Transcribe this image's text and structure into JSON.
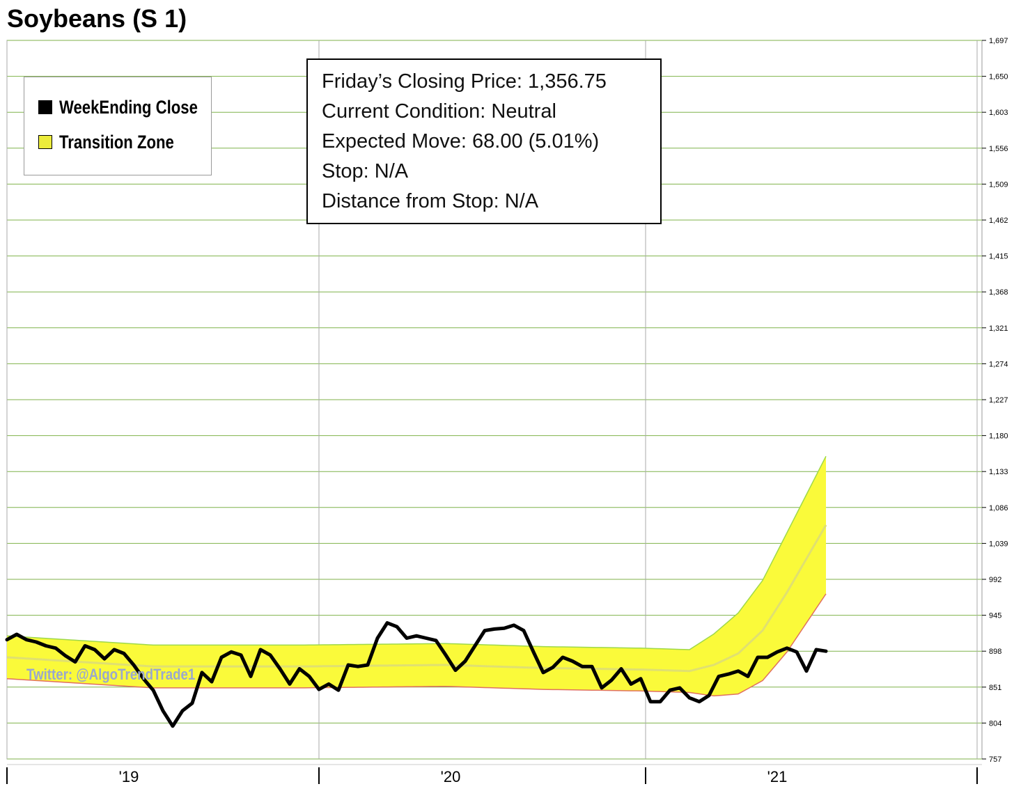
{
  "chart_data": {
    "type": "line",
    "title": "Soybeans (S 1)",
    "yticks": [
      757,
      804,
      851,
      898,
      945,
      992,
      1039,
      1086,
      1133,
      1180,
      1227,
      1274,
      1321,
      1368,
      1415,
      1462,
      1509,
      1556,
      1603,
      1650,
      1697
    ],
    "ytick_labels": [
      "757",
      "804",
      "851",
      "898",
      "945",
      "992",
      "1,039",
      "1,086",
      "1,133",
      "1,180",
      "1,227",
      "1,274",
      "1,321",
      "1,368",
      "1,415",
      "1,462",
      "1,509",
      "1,556",
      "1,603",
      "1,650",
      "1,697"
    ],
    "ylim": [
      757,
      1697
    ],
    "xlim": [
      0,
      200
    ],
    "year_markers": [
      {
        "label": "'19",
        "week": 25
      },
      {
        "label": "'20",
        "week": 91
      },
      {
        "label": "'21",
        "week": 158
      }
    ],
    "year_separators": [
      0,
      64,
      131,
      199
    ],
    "legend": [
      {
        "label": "WeekEnding Close",
        "color": "#000000"
      },
      {
        "label": "Transition Zone",
        "color": "#ecec3c"
      }
    ],
    "weekending_close": [
      {
        "x": 0,
        "y": 913
      },
      {
        "x": 2,
        "y": 920
      },
      {
        "x": 4,
        "y": 913
      },
      {
        "x": 6,
        "y": 910
      },
      {
        "x": 8,
        "y": 905
      },
      {
        "x": 10,
        "y": 902
      },
      {
        "x": 12,
        "y": 892
      },
      {
        "x": 14,
        "y": 884
      },
      {
        "x": 16,
        "y": 905
      },
      {
        "x": 18,
        "y": 900
      },
      {
        "x": 20,
        "y": 888
      },
      {
        "x": 22,
        "y": 900
      },
      {
        "x": 24,
        "y": 895
      },
      {
        "x": 26,
        "y": 880
      },
      {
        "x": 28,
        "y": 862
      },
      {
        "x": 30,
        "y": 847
      },
      {
        "x": 32,
        "y": 820
      },
      {
        "x": 34,
        "y": 800
      },
      {
        "x": 36,
        "y": 820
      },
      {
        "x": 38,
        "y": 830
      },
      {
        "x": 40,
        "y": 870
      },
      {
        "x": 42,
        "y": 858
      },
      {
        "x": 44,
        "y": 890
      },
      {
        "x": 46,
        "y": 897
      },
      {
        "x": 48,
        "y": 893
      },
      {
        "x": 50,
        "y": 865
      },
      {
        "x": 52,
        "y": 900
      },
      {
        "x": 54,
        "y": 893
      },
      {
        "x": 56,
        "y": 875
      },
      {
        "x": 58,
        "y": 855
      },
      {
        "x": 60,
        "y": 875
      },
      {
        "x": 62,
        "y": 865
      },
      {
        "x": 64,
        "y": 848
      },
      {
        "x": 66,
        "y": 855
      },
      {
        "x": 68,
        "y": 847
      },
      {
        "x": 70,
        "y": 880
      },
      {
        "x": 72,
        "y": 878
      },
      {
        "x": 74,
        "y": 880
      },
      {
        "x": 76,
        "y": 915
      },
      {
        "x": 78,
        "y": 935
      },
      {
        "x": 80,
        "y": 930
      },
      {
        "x": 82,
        "y": 915
      },
      {
        "x": 84,
        "y": 918
      },
      {
        "x": 86,
        "y": 915
      },
      {
        "x": 88,
        "y": 912
      },
      {
        "x": 90,
        "y": 893
      },
      {
        "x": 92,
        "y": 873
      },
      {
        "x": 94,
        "y": 885
      },
      {
        "x": 96,
        "y": 905
      },
      {
        "x": 98,
        "y": 925
      },
      {
        "x": 100,
        "y": 927
      },
      {
        "x": 102,
        "y": 928
      },
      {
        "x": 104,
        "y": 932
      },
      {
        "x": 106,
        "y": 925
      },
      {
        "x": 108,
        "y": 897
      },
      {
        "x": 110,
        "y": 870
      },
      {
        "x": 112,
        "y": 877
      },
      {
        "x": 114,
        "y": 890
      },
      {
        "x": 116,
        "y": 885
      },
      {
        "x": 118,
        "y": 878
      },
      {
        "x": 120,
        "y": 878
      },
      {
        "x": 122,
        "y": 850
      },
      {
        "x": 124,
        "y": 860
      },
      {
        "x": 126,
        "y": 875
      },
      {
        "x": 128,
        "y": 855
      },
      {
        "x": 130,
        "y": 862
      },
      {
        "x": 132,
        "y": 832
      },
      {
        "x": 134,
        "y": 832
      },
      {
        "x": 136,
        "y": 847
      },
      {
        "x": 138,
        "y": 850
      },
      {
        "x": 140,
        "y": 837
      },
      {
        "x": 142,
        "y": 832
      },
      {
        "x": 144,
        "y": 840
      },
      {
        "x": 146,
        "y": 865
      },
      {
        "x": 148,
        "y": 868
      },
      {
        "x": 150,
        "y": 872
      },
      {
        "x": 152,
        "y": 865
      },
      {
        "x": 154,
        "y": 890
      },
      {
        "x": 156,
        "y": 890
      },
      {
        "x": 158,
        "y": 897
      },
      {
        "x": 160,
        "y": 902
      },
      {
        "x": 162,
        "y": 897
      },
      {
        "x": 164,
        "y": 872
      },
      {
        "x": 166,
        "y": 900
      },
      {
        "x": 168,
        "y": 898
      }
    ]
  },
  "info_box": {
    "lines": [
      "Friday’s Closing Price: 1,356.75",
      "Current Condition: Neutral",
      "Expected Move: 68.00 (5.01%)",
      "Stop: N/A",
      "Distance from Stop: N/A"
    ]
  },
  "watermark": "Twitter: @AlgoTrendTrade1",
  "colors": {
    "zone_fill": "#fafa3a",
    "zone_upper": "#9ed84a",
    "zone_lower": "#e07060",
    "zone_mid": "#e0e070",
    "grid": "#7fb24a",
    "line": "#000000"
  }
}
